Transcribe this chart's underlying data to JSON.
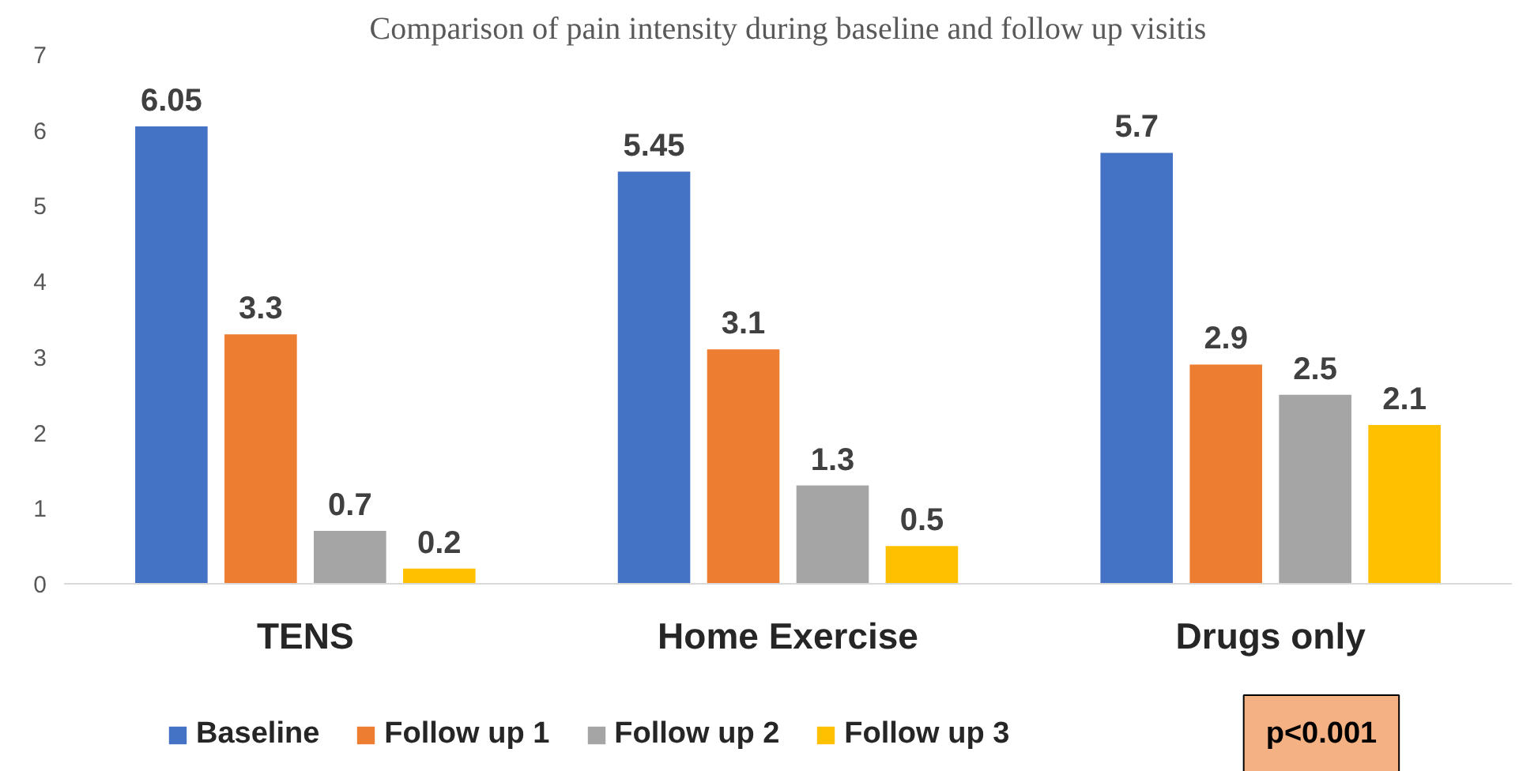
{
  "chart_data": {
    "type": "bar",
    "title": "Comparison of pain intensity during baseline and follow up visitis",
    "categories": [
      "TENS",
      "Home Exercise",
      "Drugs only"
    ],
    "series": [
      {
        "name": "Baseline",
        "color": "#4472c4",
        "values": [
          6.05,
          5.45,
          5.7
        ]
      },
      {
        "name": "Follow up 1",
        "color": "#ed7d31",
        "values": [
          3.3,
          3.1,
          2.9
        ]
      },
      {
        "name": "Follow up 2",
        "color": "#a5a5a5",
        "values": [
          0.7,
          1.3,
          2.5
        ]
      },
      {
        "name": "Follow up 3",
        "color": "#ffc000",
        "values": [
          0.2,
          0.5,
          2.1
        ]
      }
    ],
    "ylim": [
      0,
      7
    ],
    "yticks": [
      0,
      1,
      2,
      3,
      4,
      5,
      6,
      7
    ],
    "grid": false,
    "legend": "bottom",
    "data_labels": true,
    "annotations": [
      "p<0.001"
    ]
  }
}
